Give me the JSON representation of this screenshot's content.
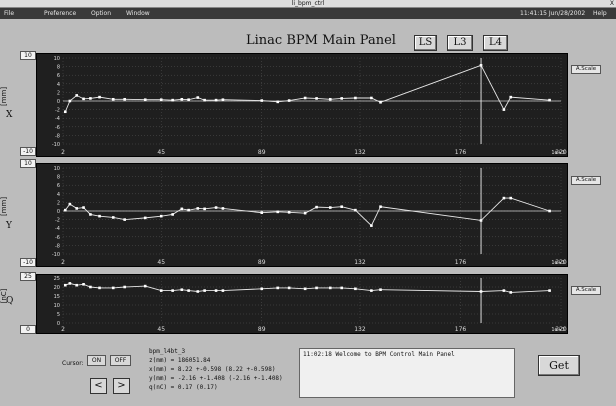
{
  "window": {
    "title": "li_bpm_ctrl",
    "close_label": "X"
  },
  "menubar": {
    "items": [
      "File",
      "Preference",
      "Option",
      "Window"
    ],
    "clock": "11:41:15 Jun/28/2002",
    "help": "Help"
  },
  "header": {
    "title": "Linac BPM Main Panel",
    "buttons": [
      "LS",
      "L3",
      "L4"
    ]
  },
  "plots": [
    {
      "name": "X",
      "unit": "[mm]",
      "ymax_label": "10",
      "ymin_label": "-10",
      "ascale_label": "A.Scale",
      "yticks": [
        "10",
        "8",
        "6",
        "4",
        "2",
        "0",
        "-2",
        "-4",
        "-6",
        "-8",
        "-10"
      ],
      "xticks": [
        "2",
        "45",
        "89",
        "132",
        "176",
        "220"
      ],
      "xscale": "1e+3"
    },
    {
      "name": "Y",
      "unit": "[mm]",
      "ymax_label": "10",
      "ymin_label": "-10",
      "ascale_label": "A.Scale",
      "yticks": [
        "10",
        "8",
        "6",
        "4",
        "2",
        "0",
        "-2",
        "-4",
        "-6",
        "-8",
        "-10"
      ],
      "xticks": [
        "2",
        "45",
        "89",
        "132",
        "176",
        "220"
      ],
      "xscale": "1e+3"
    },
    {
      "name": "Q",
      "unit": "[nC]",
      "ymax_label": "25",
      "ymin_label": "0",
      "ascale_label": "A.Scale",
      "yticks": [
        "25",
        "20",
        "15",
        "10",
        "5",
        "0"
      ],
      "xticks": [
        "2",
        "45",
        "89",
        "132",
        "176",
        "220"
      ],
      "xscale": "1e+3"
    }
  ],
  "cursor": {
    "label": "Cursor:",
    "on": "ON",
    "off": "OFF",
    "prev": "<",
    "next": ">"
  },
  "info": {
    "bpm_name": "bpm_l4bt_3",
    "z": "z(mm) = 186051.84",
    "x": "x(mm) = 8.22 +-0.598 (8.22 +-0.598)",
    "y": "y(mm) = -2.16 +-1.408 (-2.16 +-1.408)",
    "q": "q(nC) = 0.17 (0.17)"
  },
  "message": "11:02:18  Welcome to BPM Control Main Panel",
  "get_label": "Get",
  "chart_data": [
    {
      "type": "line",
      "title": "X",
      "ylabel": "X [mm]",
      "ylim": [
        -10,
        10
      ],
      "xlim": [
        2,
        220
      ],
      "x": [
        3,
        5,
        8,
        11,
        14,
        18,
        24,
        29,
        38,
        45,
        50,
        54,
        57,
        61,
        64,
        69,
        72,
        89,
        96,
        101,
        108,
        113,
        119,
        124,
        130,
        137,
        141,
        185,
        195,
        198,
        215
      ],
      "values": [
        -2.5,
        0,
        1.3,
        0.5,
        0.6,
        0.9,
        0.4,
        0.4,
        0.3,
        0.3,
        0.2,
        0.4,
        0.3,
        0.8,
        0.2,
        0.2,
        0.3,
        0.1,
        -0.2,
        0.1,
        0.7,
        0.6,
        0.4,
        0.6,
        0.7,
        0.7,
        -0.3,
        8.3,
        -2.0,
        0.9,
        0.2
      ]
    },
    {
      "type": "line",
      "title": "Y",
      "ylabel": "Y [mm]",
      "ylim": [
        -10,
        10
      ],
      "xlim": [
        2,
        220
      ],
      "x": [
        3,
        5,
        8,
        11,
        14,
        18,
        24,
        29,
        38,
        45,
        50,
        54,
        57,
        61,
        64,
        69,
        72,
        89,
        96,
        101,
        108,
        113,
        119,
        124,
        130,
        137,
        141,
        185,
        195,
        198,
        215
      ],
      "values": [
        0.2,
        1.6,
        0.6,
        0.8,
        -0.8,
        -1.2,
        -1.5,
        -2.0,
        -1.6,
        -1.2,
        -0.8,
        0.5,
        0.2,
        0.6,
        0.5,
        0.8,
        0.6,
        -0.4,
        -0.2,
        -0.3,
        -0.5,
        0.9,
        0.8,
        1.0,
        0.2,
        -3.4,
        1.0,
        -2.2,
        3.0,
        3.0,
        0.0
      ]
    },
    {
      "type": "line",
      "title": "Q",
      "ylabel": "Q [nC]",
      "ylim": [
        0,
        25
      ],
      "xlim": [
        2,
        220
      ],
      "x": [
        3,
        5,
        8,
        11,
        14,
        18,
        24,
        29,
        38,
        45,
        50,
        54,
        57,
        61,
        64,
        69,
        72,
        89,
        96,
        101,
        108,
        113,
        119,
        124,
        130,
        137,
        141,
        185,
        195,
        198,
        215
      ],
      "values": [
        21,
        22,
        21,
        21.5,
        20,
        19.5,
        19.5,
        20,
        20.5,
        18,
        18,
        18.5,
        18,
        17.5,
        18,
        18,
        18,
        19,
        19.5,
        19.5,
        19,
        19.5,
        19.5,
        19.5,
        19,
        18,
        18.5,
        17.5,
        18,
        17,
        18
      ]
    }
  ]
}
